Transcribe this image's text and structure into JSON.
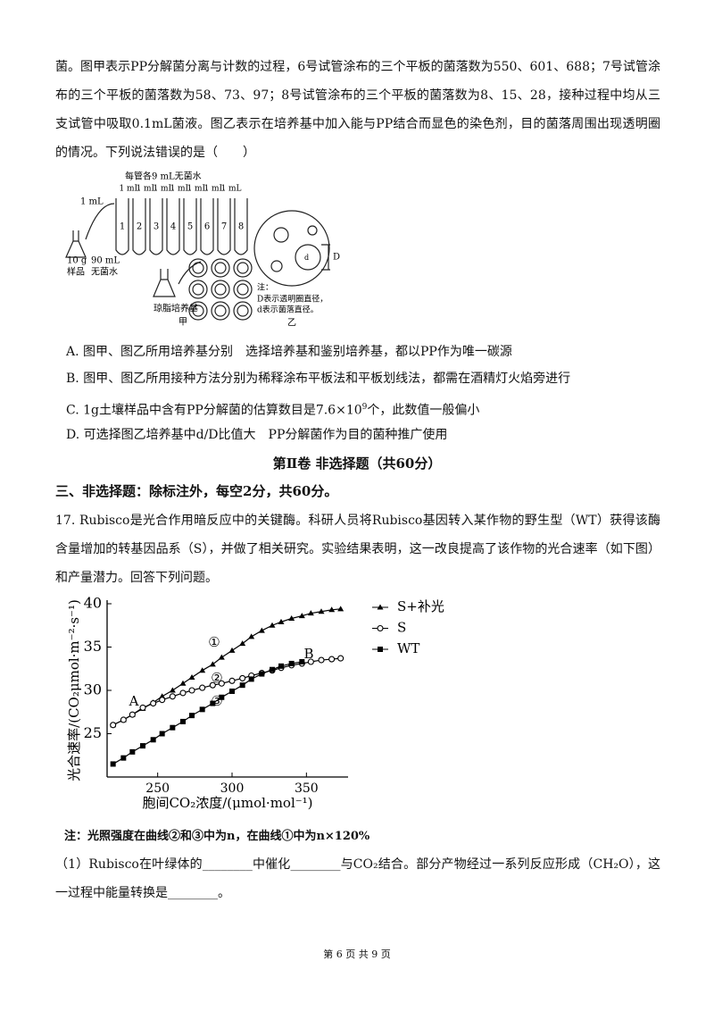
{
  "question16": {
    "stem": "菌。图甲表示PP分解菌分离与计数的过程，6号试管涂布的三个平板的菌落数为550、601、688；7号试管涂布的三个平板的菌落数为58、73、97；8号试管涂布的三个平板的菌落数为8、15、28，接种过程中均从三支试管中吸取0.1mL菌液。图乙表示在培养基中加入能与PP结合而显色的染色剂，目的菌落周围出现透明圈的情况。下列说法错误的是（　　）",
    "figure": {
      "water_note": "每管各9 mL无菌水",
      "transfer": "1 mL",
      "tube_transfers": [
        "1 mL",
        "1 mL",
        "1 mL",
        "1 mL",
        "1 mL",
        "1 mL",
        "1 mL"
      ],
      "tubes": [
        "1",
        "2",
        "3",
        "4",
        "5",
        "6",
        "7",
        "8"
      ],
      "sample_mass": "10 g",
      "water_volume": "90 mL",
      "sample": "样品",
      "sterile_water": "无菌水",
      "agar": "琼脂培养基",
      "label_jia": "甲",
      "big_d": "D",
      "small_d": "d",
      "note_head": "注：",
      "note_1": "D表示透明圈直径，",
      "note_2": "d表示菌落直径。",
      "label_yi": "乙"
    },
    "options": [
      "A. 图甲、图乙所用培养基分别　选择培养基和鉴别培养基，都以PP作为唯一碳源",
      "B. 图甲、图乙所用接种方法分别为稀释涂布平板法和平板划线法，都需在酒精灯火焰旁进行",
      {
        "before": "C. 1g土壤样品中含有PP分解菌的估算数目是7.6×10",
        "sup": "9",
        "after": "个，此数值一般偏小"
      },
      "D. 可选择图乙培养基中d/D比值大　PP分解菌作为目的菌种推广使用"
    ]
  },
  "section": {
    "heading": "第Ⅱ卷 非选择题（共60分）",
    "instruction": "三、非选择题：除标注外，每空2分，共60分。"
  },
  "question17": {
    "stem": "17. Rubisco是光合作用暗反应中的关键酶。科研人员将Rubisco基因转入某作物的野生型（WT）获得该酶含量增加的转基因品系（S），并做了相关研究。实验结果表明，这一改良提高了该作物的光合速率（如下图）和产量潜力。回答下列问题。",
    "note": "注：光照强度在曲线②和③中为n，在曲线①中为n×120%",
    "sub1": "（1）Rubisco在叶绿体的________中催化________与CO₂结合。部分产物经过一系列反应形成（CH₂O），这一过程中能量转换是________。"
  },
  "chart_data": {
    "type": "line",
    "y_label": "光合速率/(CO₂μmol·m⁻²·s⁻¹)",
    "x_label": "胞间CO₂浓度/(μmol·mol⁻¹)",
    "x": [
      220,
      227,
      233,
      240,
      247,
      253,
      260,
      267,
      273,
      280,
      287,
      293,
      300,
      307,
      313,
      320,
      327,
      333,
      340,
      347,
      353,
      360,
      367,
      373
    ],
    "series": [
      {
        "name": "S+补光",
        "color": "#000000",
        "marker": "triangle",
        "values": [
          26.0,
          26.6,
          27.2,
          27.9,
          28.6,
          29.3,
          30.0,
          30.8,
          31.5,
          32.3,
          33.0,
          33.8,
          34.6,
          35.4,
          36.2,
          36.9,
          37.5,
          37.9,
          38.3,
          38.6,
          38.9,
          39.1,
          39.3,
          39.4
        ]
      },
      {
        "name": "S",
        "color": "#000000",
        "marker": "circle-open",
        "values": [
          26.0,
          26.6,
          27.2,
          28.0,
          28.5,
          28.9,
          29.3,
          29.7,
          30.0,
          30.3,
          30.6,
          30.8,
          31.1,
          31.4,
          31.7,
          32.0,
          32.3,
          32.6,
          32.9,
          33.1,
          33.3,
          33.5,
          33.6,
          33.7
        ]
      },
      {
        "name": "WT",
        "color": "#000000",
        "marker": "square",
        "values": [
          21.5,
          22.2,
          22.9,
          23.6,
          24.3,
          25.0,
          25.7,
          26.4,
          27.1,
          27.8,
          28.5,
          29.2,
          29.9,
          30.6,
          31.3,
          31.9,
          32.4,
          32.8,
          33.1,
          33.3,
          null,
          null,
          null,
          null
        ]
      }
    ],
    "annotations": [
      "A",
      "B",
      "①",
      "②",
      "③"
    ],
    "xlim": [
      216,
      378
    ],
    "xticks": [
      250,
      300,
      350
    ],
    "ylim": [
      20,
      40
    ],
    "yticks": [
      25,
      30,
      35,
      40
    ],
    "grid": false,
    "legend": "top-right"
  },
  "footer": "第 6 页 共 9 页"
}
